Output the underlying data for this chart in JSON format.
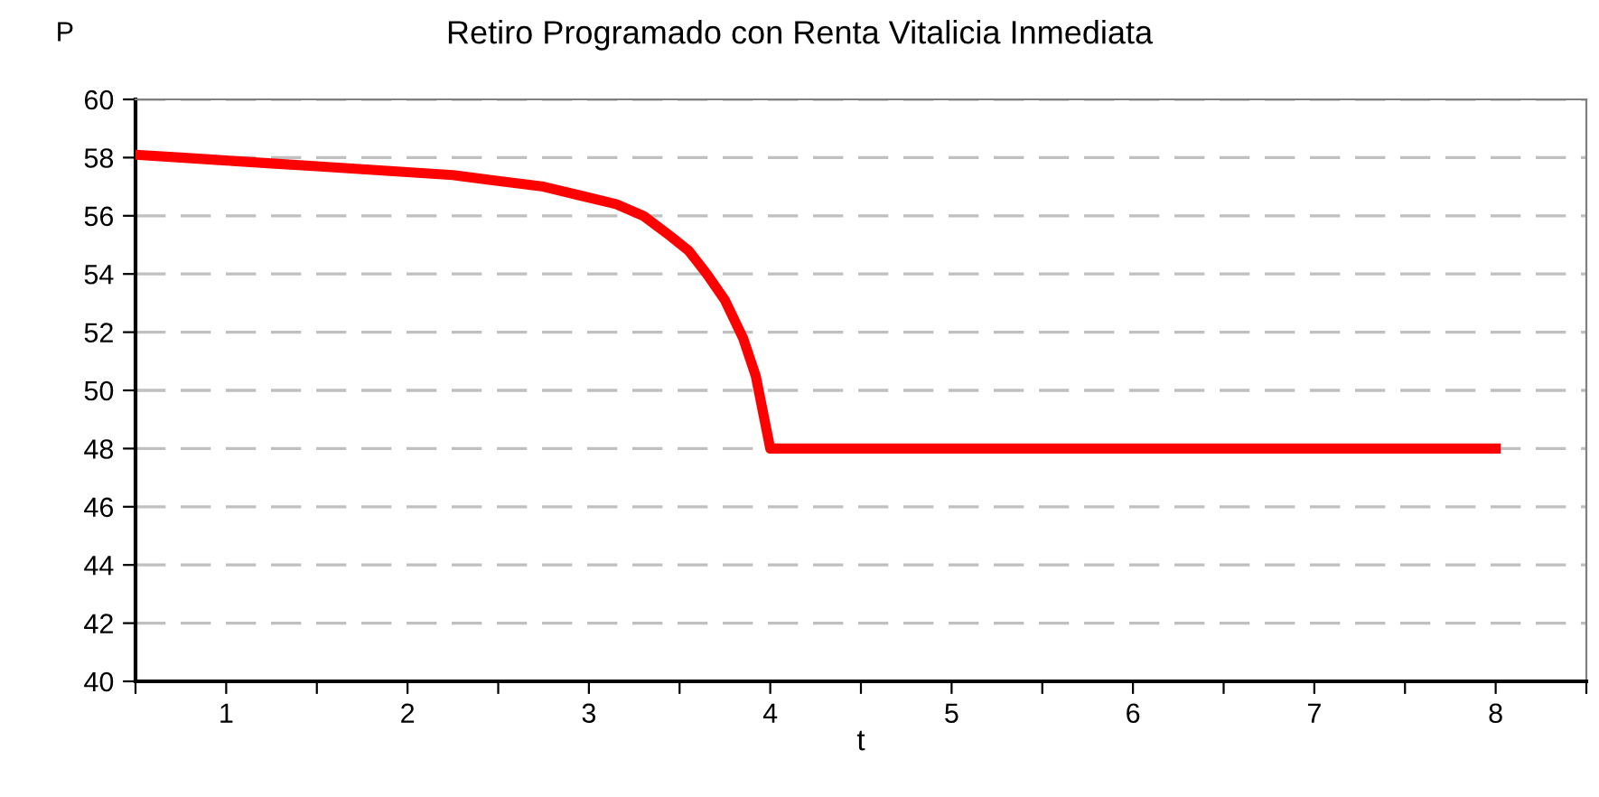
{
  "chart_data": {
    "type": "line",
    "title": "Retiro Programado con Renta Vitalicia Inmediata",
    "xlabel": "t",
    "ylabel": "P",
    "xlim": [
      0.5,
      8.5
    ],
    "xticks": [
      {
        "value": 0.5,
        "label": null
      },
      {
        "value": 1,
        "label": "1"
      },
      {
        "value": 1.5,
        "label": null
      },
      {
        "value": 2,
        "label": "2"
      },
      {
        "value": 2.5,
        "label": null
      },
      {
        "value": 3,
        "label": "3"
      },
      {
        "value": 3.5,
        "label": null
      },
      {
        "value": 4,
        "label": "4"
      },
      {
        "value": 4.5,
        "label": null
      },
      {
        "value": 5,
        "label": "5"
      },
      {
        "value": 5.5,
        "label": null
      },
      {
        "value": 6,
        "label": "6"
      },
      {
        "value": 6.5,
        "label": null
      },
      {
        "value": 7,
        "label": "7"
      },
      {
        "value": 7.5,
        "label": null
      },
      {
        "value": 8,
        "label": "8"
      },
      {
        "value": 8.5,
        "label": null
      }
    ],
    "ylim": [
      40,
      60
    ],
    "yticks": [
      40,
      42,
      44,
      46,
      48,
      50,
      52,
      54,
      56,
      58,
      60
    ],
    "grid": "y",
    "marker": "none",
    "line_style": "solid",
    "series": [
      {
        "color": "#ff0000",
        "x": [
          0.5,
          0.75,
          1.0,
          1.25,
          1.5,
          1.75,
          2.0,
          2.25,
          2.5,
          2.75,
          2.95,
          3.15,
          3.3,
          3.45,
          3.55,
          3.65,
          3.75,
          3.85,
          3.92,
          4.0,
          8.0
        ],
        "values": [
          58.1,
          58.0,
          57.9,
          57.8,
          57.7,
          57.6,
          57.5,
          57.4,
          57.2,
          57.0,
          56.7,
          56.4,
          56.0,
          55.3,
          54.8,
          54.0,
          53.1,
          51.8,
          50.5,
          48.0,
          48.0
        ]
      }
    ]
  }
}
